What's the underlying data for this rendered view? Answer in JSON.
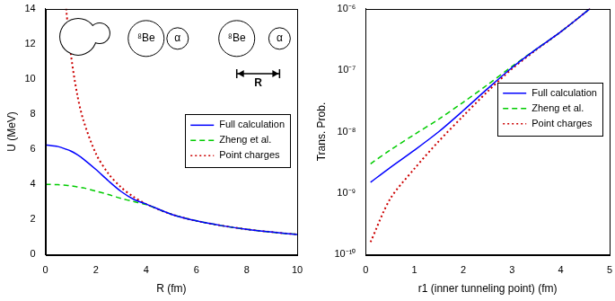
{
  "chart_data": [
    {
      "type": "line",
      "x_label": "R (fm)",
      "y_label": "U (MeV)",
      "x": [
        0,
        0.5,
        0.82,
        1,
        1.25,
        1.5,
        2,
        2.5,
        3,
        3.5,
        4,
        5,
        6,
        7,
        8,
        9,
        10
      ],
      "series": [
        {
          "name": "Full calculation",
          "color": "#0000ff",
          "line_style": "solid",
          "values": [
            6.25,
            6.15,
            6.0,
            5.9,
            5.7,
            5.45,
            4.85,
            4.2,
            3.6,
            3.15,
            2.88,
            2.3,
            1.92,
            1.65,
            1.44,
            1.28,
            1.15
          ]
        },
        {
          "name": "Zheng et al.",
          "color": "#00cc00",
          "line_style": "dashed",
          "values": [
            4.0,
            3.98,
            3.94,
            3.92,
            3.86,
            3.8,
            3.62,
            3.42,
            3.2,
            3.02,
            2.85,
            2.3,
            1.92,
            1.65,
            1.44,
            1.28,
            1.15
          ]
        },
        {
          "name": "Point charges",
          "color": "#cc0000",
          "line_style": "dotted",
          "values": [
            null,
            null,
            14.0,
            11.5,
            9.2,
            7.68,
            5.76,
            4.61,
            3.84,
            3.29,
            2.88,
            2.3,
            1.92,
            1.65,
            1.44,
            1.28,
            1.15
          ]
        }
      ],
      "xlim": [
        0,
        10
      ],
      "xticks": [
        0,
        2,
        4,
        6,
        8,
        10
      ],
      "ylim": [
        0,
        14
      ],
      "yticks": [
        0,
        2,
        4,
        6,
        8,
        10,
        12,
        14
      ],
      "grid": false,
      "legend": "right",
      "annotations": [
        "⁸Be",
        "α",
        "⁸Be",
        "α",
        "R"
      ]
    },
    {
      "type": "line",
      "x_label": "r1 (inner tunneling point) (fm)",
      "y_label": "Trans. Prob.",
      "x": [
        0.1,
        0.5,
        1,
        1.5,
        2,
        2.5,
        3,
        3.5,
        4,
        4.6
      ],
      "series": [
        {
          "name": "Full calculation",
          "color": "#0000ff",
          "line_style": "solid",
          "values": [
            1.5e-09,
            2.6e-09,
            5e-09,
            1e-08,
            2.2e-08,
            5e-08,
            1.1e-07,
            2.2e-07,
            4.2e-07,
            1e-06
          ]
        },
        {
          "name": "Zheng et al.",
          "color": "#00cc00",
          "line_style": "dashed",
          "values": [
            3e-09,
            5e-09,
            9e-09,
            1.6e-08,
            3e-08,
            5.8e-08,
            1.15e-07,
            2.2e-07,
            4.2e-07,
            1e-06
          ]
        },
        {
          "name": "Point charges",
          "color": "#cc0000",
          "line_style": "dotted",
          "values": [
            1.6e-10,
            8e-10,
            2.5e-09,
            7e-09,
            1.8e-08,
            4.5e-08,
            1.05e-07,
            2.15e-07,
            4.2e-07,
            1e-06
          ]
        }
      ],
      "xlim": [
        0,
        5
      ],
      "xticks": [
        0,
        1,
        2,
        3,
        4,
        5
      ],
      "ylim": [
        1e-10,
        1e-06
      ],
      "yticks": [
        {
          "value": 1e-10,
          "label": "10⁻¹⁰"
        },
        {
          "value": 1e-09,
          "label": "10⁻⁹"
        },
        {
          "value": 1e-08,
          "label": "10⁻⁸"
        },
        {
          "value": 1e-07,
          "label": "10⁻⁷"
        },
        {
          "value": 1e-06,
          "label": "10⁻⁶"
        }
      ],
      "log": "y",
      "grid": false,
      "legend": "right"
    }
  ]
}
